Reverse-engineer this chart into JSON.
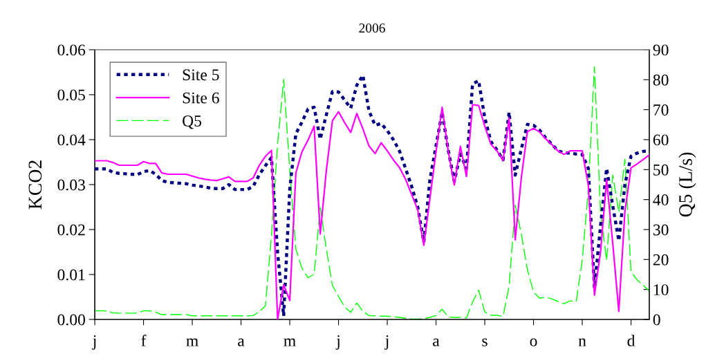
{
  "chart_data": {
    "type": "line",
    "title": "2006",
    "ylabel": "KCO2",
    "y2label": "Q5 (L/s)",
    "categories": [
      "j",
      null,
      null,
      null,
      null,
      null,
      null,
      null,
      "f",
      null,
      null,
      null,
      null,
      null,
      null,
      null,
      "m",
      null,
      null,
      null,
      null,
      null,
      null,
      null,
      "a",
      null,
      null,
      null,
      null,
      null,
      null,
      null,
      "m",
      null,
      null,
      null,
      null,
      null,
      null,
      null,
      "j",
      null,
      null,
      null,
      null,
      null,
      null,
      null,
      "j",
      null,
      null,
      null,
      null,
      null,
      null,
      null,
      "a",
      null,
      null,
      null,
      null,
      null,
      null,
      null,
      "s",
      null,
      null,
      null,
      null,
      null,
      null,
      null,
      "o",
      null,
      null,
      null,
      null,
      null,
      null,
      null,
      "n",
      null,
      null,
      null,
      null,
      null,
      null,
      null,
      "d",
      null,
      null,
      null
    ],
    "ylim": [
      0,
      0.06
    ],
    "yticks": [
      {
        "value": 0,
        "label": "0.00"
      },
      {
        "value": 0.01,
        "label": "0.01"
      },
      {
        "value": 0.02,
        "label": "0.02"
      },
      {
        "value": 0.03,
        "label": "0.03"
      },
      {
        "value": 0.04,
        "label": "0.04"
      },
      {
        "value": 0.05,
        "label": "0.05"
      },
      {
        "value": 0.06,
        "label": "0.06"
      }
    ],
    "y2lim": [
      0,
      90
    ],
    "y2ticks": [
      0,
      10,
      20,
      30,
      40,
      50,
      60,
      70,
      80,
      90
    ],
    "grid": false,
    "legend": "top left",
    "marker": "none",
    "series": [
      {
        "name": "Site 5",
        "color": "#000080",
        "line_style": "dotted",
        "values": [
          0.0335,
          0.0335,
          0.0335,
          0.0327,
          0.0325,
          0.0324,
          0.0323,
          0.0322,
          0.0329,
          0.0331,
          0.0323,
          0.0309,
          0.0305,
          0.0304,
          0.0303,
          0.0302,
          0.0299,
          0.0297,
          0.0295,
          0.0292,
          0.0291,
          0.0291,
          0.03,
          0.0289,
          0.0289,
          0.0289,
          0.0296,
          0.0322,
          0.0342,
          0.036,
          0.015,
          0.0008,
          0.029,
          0.0413,
          0.0439,
          0.0468,
          0.0472,
          0.0401,
          0.0455,
          0.0507,
          0.0506,
          0.0488,
          0.047,
          0.0521,
          0.0543,
          0.0464,
          0.0432,
          0.0436,
          0.042,
          0.04,
          0.0375,
          0.0336,
          0.0296,
          0.025,
          0.0172,
          0.0311,
          0.0386,
          0.0461,
          0.0377,
          0.0307,
          0.0368,
          0.0336,
          0.0524,
          0.0531,
          0.0449,
          0.0396,
          0.0377,
          0.0355,
          0.0461,
          0.0321,
          0.0379,
          0.0434,
          0.0432,
          0.0421,
          0.0404,
          0.039,
          0.0375,
          0.0371,
          0.037,
          0.0368,
          0.0367,
          0.0336,
          0.007,
          0.0208,
          0.0336,
          0.0253,
          0.0175,
          0.03,
          0.0363,
          0.037,
          0.0374,
          0.0375
        ]
      },
      {
        "name": "Site 6",
        "color": "#ff00ff",
        "line_style": "solid",
        "values": [
          0.0353,
          0.0353,
          0.0353,
          0.0349,
          0.0343,
          0.0343,
          0.0343,
          0.0343,
          0.0351,
          0.0347,
          0.0347,
          0.0326,
          0.0323,
          0.0323,
          0.0323,
          0.0323,
          0.0319,
          0.0315,
          0.0312,
          0.031,
          0.0309,
          0.0313,
          0.0317,
          0.0307,
          0.0307,
          0.0307,
          0.0315,
          0.0343,
          0.0363,
          0.0376,
          0.0,
          0.0077,
          0.0042,
          0.0326,
          0.0373,
          0.0399,
          0.043,
          0.019,
          0.0331,
          0.0442,
          0.0462,
          0.0438,
          0.0416,
          0.0458,
          0.0424,
          0.0386,
          0.0369,
          0.0393,
          0.0375,
          0.0355,
          0.0338,
          0.0312,
          0.0278,
          0.0244,
          0.0165,
          0.0269,
          0.0373,
          0.0472,
          0.0375,
          0.0299,
          0.0385,
          0.0318,
          0.0478,
          0.0476,
          0.043,
          0.039,
          0.0375,
          0.0354,
          0.0448,
          0.0177,
          0.0315,
          0.0418,
          0.0425,
          0.0417,
          0.0402,
          0.0389,
          0.0375,
          0.0367,
          0.0375,
          0.0375,
          0.0375,
          0.0298,
          0.0054,
          0.015,
          0.0311,
          0.017,
          0.0018,
          0.024,
          0.0337,
          0.0346,
          0.0356,
          0.0366
        ]
      },
      {
        "name": "Q5",
        "color": "#00ff00",
        "line_style": "dashed",
        "axis": "y2",
        "values": [
          2.9,
          2.9,
          2.8,
          2.2,
          2.1,
          2.1,
          2.1,
          2.1,
          2.9,
          2.9,
          2.4,
          1.6,
          1.6,
          1.6,
          1.6,
          1.6,
          1.2,
          1.2,
          1.2,
          1.2,
          1.2,
          1.2,
          1.2,
          1.2,
          1.2,
          1.2,
          1.3,
          2.6,
          4.5,
          28,
          58.6,
          80.1,
          49.7,
          23.5,
          17.1,
          13.9,
          15.1,
          37.4,
          23.5,
          11.3,
          7.7,
          4.2,
          2.4,
          5.5,
          2.7,
          1.3,
          1.2,
          1.1,
          1.1,
          0.9,
          0.7,
          0.4,
          0.2,
          0.1,
          0.3,
          0.7,
          1.3,
          3.4,
          0.8,
          0.7,
          0.7,
          0.5,
          5.8,
          9.8,
          2.5,
          1.4,
          1.4,
          1.0,
          11.2,
          38.1,
          28.5,
          16.6,
          9.2,
          7.1,
          7.4,
          6.9,
          6.0,
          5.2,
          6.2,
          5.9,
          19.7,
          43.5,
          84.3,
          35.8,
          19.7,
          48.2,
          35.8,
          53.5,
          15.9,
          13.2,
          11.4,
          9.5
        ]
      }
    ]
  }
}
